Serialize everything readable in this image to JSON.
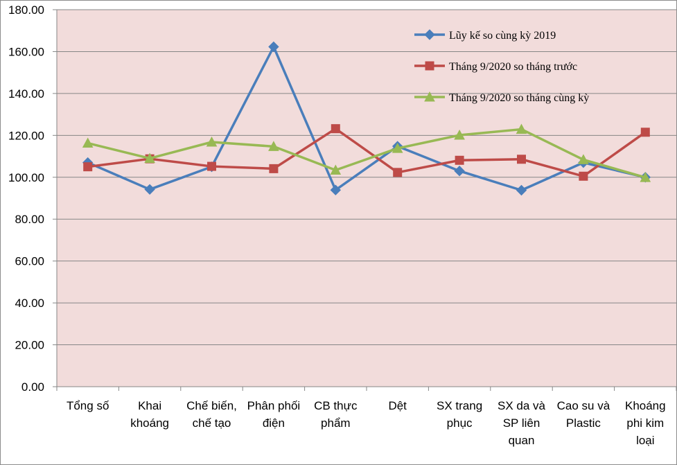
{
  "chart_data": {
    "type": "line",
    "title": "",
    "xlabel": "",
    "ylabel": "",
    "ylim": [
      0,
      180
    ],
    "yticks": [
      "0.00",
      "20.00",
      "40.00",
      "60.00",
      "80.00",
      "100.00",
      "120.00",
      "140.00",
      "160.00",
      "180.00"
    ],
    "grid": true,
    "legend_position": "top-right",
    "categories": [
      [
        "Tổng số"
      ],
      [
        "Khai",
        "khoáng"
      ],
      [
        "Chế biến,",
        "chế tạo"
      ],
      [
        "Phân phối",
        "điện"
      ],
      [
        "CB thực",
        "phẩm"
      ],
      [
        "Dệt"
      ],
      [
        "SX trang",
        "phục"
      ],
      [
        "SX da và",
        "SP liên",
        "quan"
      ],
      [
        "Cao su và",
        "Plastic"
      ],
      [
        "Khoáng",
        "phi kim",
        "loại"
      ]
    ],
    "series": [
      {
        "name": "Lũy kế so cùng kỳ 2019",
        "color": "#4a7ebb",
        "marker": "diamond",
        "values": [
          107.0,
          94.2,
          105.0,
          162.3,
          93.9,
          114.8,
          103.0,
          93.8,
          107.0,
          100.0
        ]
      },
      {
        "name": "Tháng  9/2020  so tháng  trước",
        "color": "#be4b48",
        "marker": "square",
        "values": [
          105.0,
          108.8,
          105.2,
          104.1,
          123.2,
          102.3,
          108.1,
          108.6,
          100.5,
          121.5
        ]
      },
      {
        "name": "Tháng  9/2020  so tháng  cùng kỳ",
        "color": "#98b954",
        "marker": "triangle",
        "values": [
          116.3,
          109.0,
          116.8,
          114.7,
          103.4,
          113.8,
          120.1,
          122.9,
          108.4,
          99.9
        ]
      }
    ]
  }
}
